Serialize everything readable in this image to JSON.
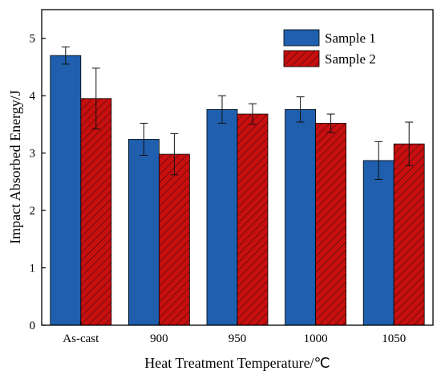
{
  "chart_data": {
    "type": "bar",
    "categories": [
      "As-cast",
      "900",
      "950",
      "1000",
      "1050"
    ],
    "series": [
      {
        "name": "Sample 1",
        "values": [
          4.7,
          3.24,
          3.76,
          3.76,
          2.87
        ],
        "errors": [
          0.15,
          0.28,
          0.24,
          0.22,
          0.33
        ],
        "color": "#1f5fad",
        "pattern": "solid"
      },
      {
        "name": "Sample 2",
        "values": [
          3.95,
          2.98,
          3.68,
          3.52,
          3.16
        ],
        "errors": [
          0.53,
          0.36,
          0.18,
          0.16,
          0.38
        ],
        "color": "#c80f0f",
        "pattern": "hatched"
      }
    ],
    "xlabel": "Heat Treatment Temperature/℃",
    "ylabel": "Impact Absorbed Energy/J",
    "ylim": [
      0,
      5.5
    ],
    "yticks": [
      "0",
      "1",
      "2",
      "3",
      "4",
      "5"
    ],
    "grid": false,
    "legend_position": "top-right"
  }
}
